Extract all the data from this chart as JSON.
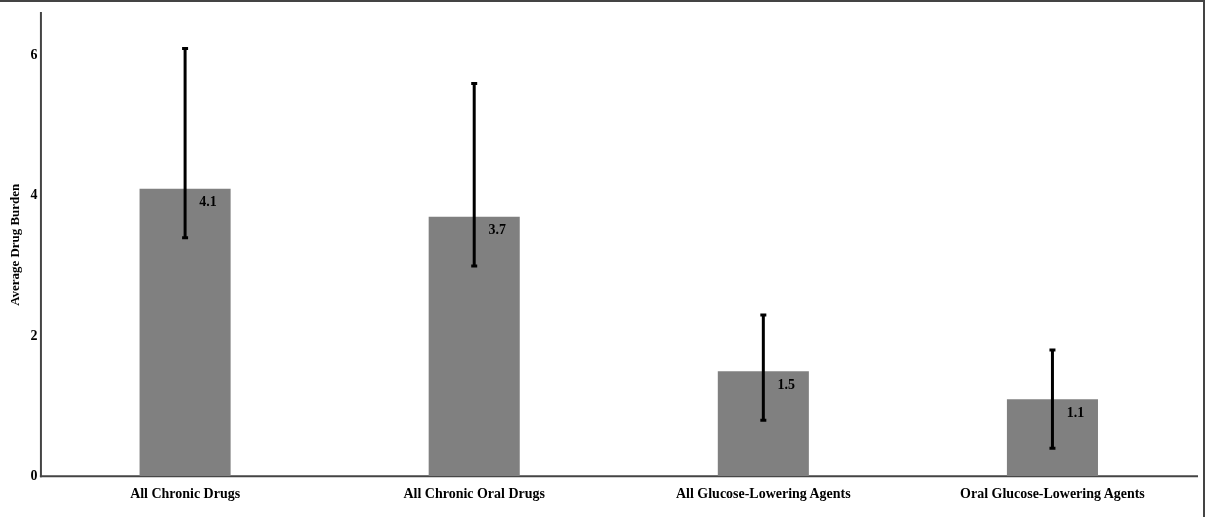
{
  "chart_data": {
    "type": "bar",
    "ylabel": "Average Drug Burden",
    "categories": [
      "All Chronic Drugs",
      "All Chronic Oral Drugs",
      "All Glucose-Lowering Agents",
      "Oral Glucose-Lowering Agents"
    ],
    "values": [
      4.1,
      3.7,
      1.5,
      1.1
    ],
    "color": "#808080",
    "errors": [
      [
        3.4,
        6.1
      ],
      [
        3.0,
        5.6
      ],
      [
        0.8,
        2.3
      ],
      [
        0.4,
        1.8
      ]
    ],
    "ylim": [
      0,
      6.6
    ],
    "yticks": [
      0,
      2,
      4,
      6
    ],
    "grid": false,
    "legend": false,
    "data_labels": true
  }
}
